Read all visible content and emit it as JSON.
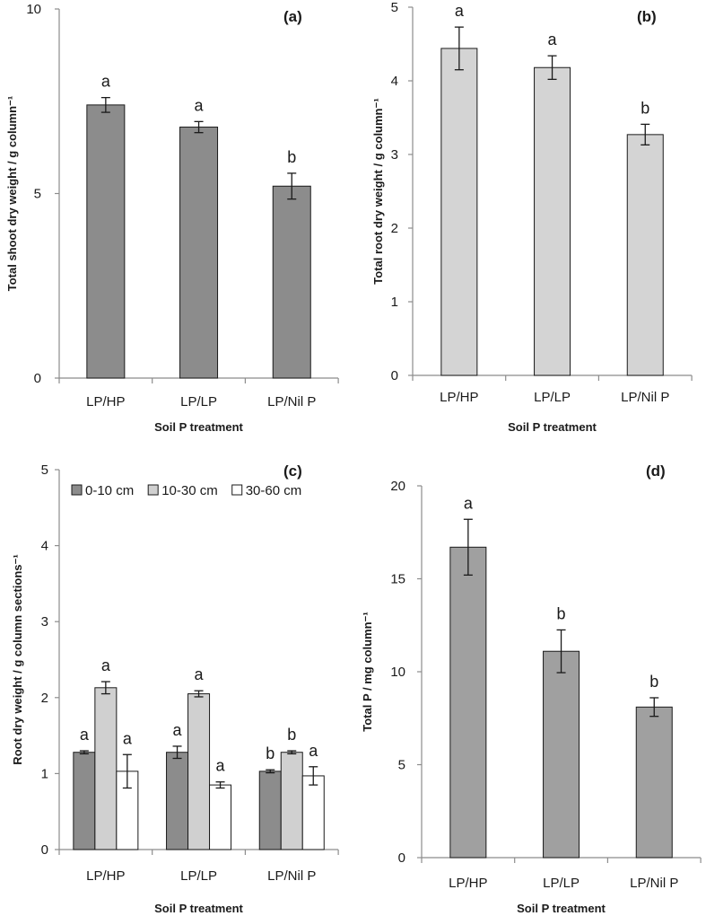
{
  "colors": {
    "shoot_bar": "#8c8c8c",
    "root_bar": "#d4d4d4",
    "depth_0_10": "#8c8c8c",
    "depth_10_30": "#d0d0d0",
    "depth_30_60": "#ffffff",
    "totalP_bar": "#a0a0a0"
  },
  "chart_data": [
    {
      "panel": "(a)",
      "type": "bar",
      "categories": [
        "LP/HP",
        "LP/LP",
        "LP/Nil P"
      ],
      "values": [
        7.4,
        6.8,
        5.2
      ],
      "errors": [
        0.2,
        0.15,
        0.35
      ],
      "significance": [
        "a",
        "a",
        "b"
      ],
      "xlabel": "Soil P treatment",
      "ylabel": "Total shoot dry weight / g column⁻¹",
      "ylim": [
        0,
        10
      ],
      "yticks": [
        0,
        5,
        10
      ],
      "legend": []
    },
    {
      "panel": "(b)",
      "type": "bar",
      "categories": [
        "LP/HP",
        "LP/LP",
        "LP/Nil P"
      ],
      "values": [
        4.44,
        4.18,
        3.27
      ],
      "errors": [
        0.29,
        0.16,
        0.14
      ],
      "significance": [
        "a",
        "a",
        "b"
      ],
      "xlabel": "Soil P treatment",
      "ylabel": "Total root dry weight / g column⁻¹",
      "ylim": [
        0,
        5
      ],
      "yticks": [
        0,
        1,
        2,
        3,
        4,
        5
      ],
      "legend": []
    },
    {
      "panel": "(c)",
      "type": "bar",
      "categories": [
        "LP/HP",
        "LP/LP",
        "LP/Nil P"
      ],
      "series": [
        {
          "name": "0-10 cm",
          "values": [
            1.28,
            1.28,
            1.03
          ],
          "errors": [
            0.02,
            0.08,
            0.02
          ],
          "significance": [
            "a",
            "a",
            "b"
          ]
        },
        {
          "name": "10-30 cm",
          "values": [
            2.13,
            2.05,
            1.28
          ],
          "errors": [
            0.08,
            0.04,
            0.02
          ],
          "significance": [
            "a",
            "a",
            "b"
          ]
        },
        {
          "name": "30-60 cm",
          "values": [
            1.03,
            0.85,
            0.97
          ],
          "errors": [
            0.22,
            0.04,
            0.12
          ],
          "significance": [
            "a",
            "a",
            "a"
          ]
        }
      ],
      "xlabel": "Soil P treatment",
      "ylabel": "Root dry weight / g column sections⁻¹",
      "ylim": [
        0,
        5
      ],
      "yticks": [
        0,
        1,
        2,
        3,
        4,
        5
      ],
      "legend": [
        "0-10 cm",
        "10-30 cm",
        "30-60 cm"
      ]
    },
    {
      "panel": "(d)",
      "type": "bar",
      "categories": [
        "LP/HP",
        "LP/LP",
        "LP/Nil P"
      ],
      "values": [
        16.7,
        11.1,
        8.1
      ],
      "errors": [
        1.5,
        1.15,
        0.5
      ],
      "significance": [
        "a",
        "b",
        "b"
      ],
      "xlabel": "Soil P treatment",
      "ylabel": "Total P / mg column⁻¹",
      "ylim": [
        0,
        20
      ],
      "yticks": [
        0,
        5,
        10,
        15,
        20
      ],
      "legend": []
    }
  ]
}
